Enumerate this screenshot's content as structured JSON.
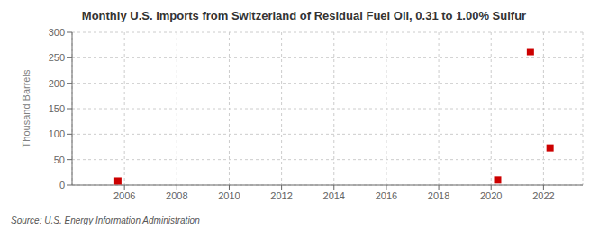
{
  "chart_data": {
    "type": "scatter",
    "title": "Monthly U.S. Imports from Switzerland of Residual Fuel Oil, 0.31 to 1.00% Sulfur",
    "y_label": "Thousand Barrels",
    "annotations": [
      "Source: U.S. Energy Information Administration"
    ],
    "x": [
      2005.75,
      2020.25,
      2021.5,
      2022.25
    ],
    "values": [
      8,
      10,
      262,
      73
    ],
    "color": "#cc0000",
    "marker": "square",
    "xlim": [
      2004.0,
      2023.5
    ],
    "ylim": [
      0,
      300
    ],
    "xticks": [
      2006,
      2008,
      2010,
      2012,
      2014,
      2016,
      2018,
      2020,
      2022
    ],
    "yticks": [
      0,
      50,
      100,
      150,
      200,
      250,
      300
    ],
    "grid": true
  }
}
